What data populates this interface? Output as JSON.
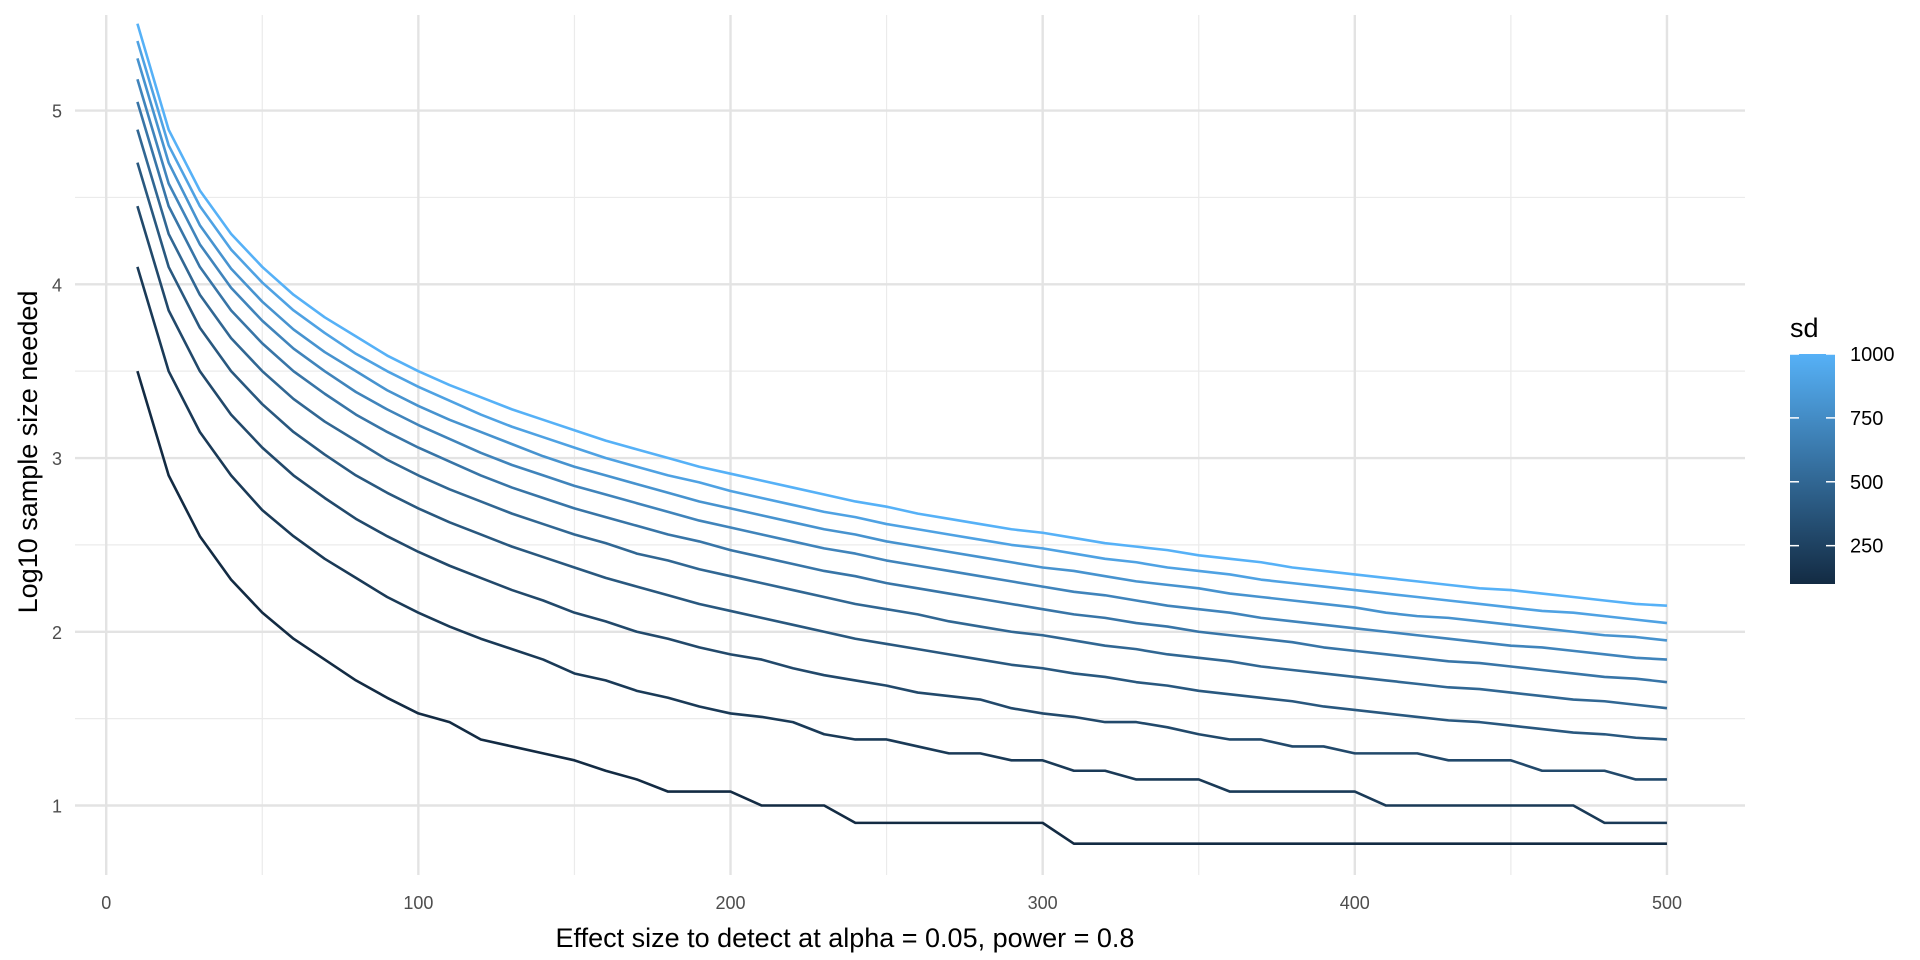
{
  "chart_data": {
    "type": "line",
    "title": "",
    "xlabel": "Effect size to detect at alpha = 0.05, power = 0.8",
    "ylabel": "Log10 sample size needed",
    "xlim": [
      -10,
      525
    ],
    "ylim": [
      0.6,
      5.55
    ],
    "x_ticks": [
      0,
      100,
      200,
      300,
      400,
      500
    ],
    "x_tick_labels": [
      "0",
      "100",
      "200",
      "300",
      "400",
      "500"
    ],
    "x_minor_ticks": [
      50,
      150,
      250,
      350,
      450
    ],
    "y_ticks": [
      1,
      2,
      3,
      4,
      5
    ],
    "y_tick_labels": [
      "1",
      "2",
      "3",
      "4",
      "5"
    ],
    "y_minor_ticks": [
      1.5,
      2.5,
      3.5,
      4.5
    ],
    "grid": true,
    "legend": {
      "title": "sd",
      "position": "right",
      "type": "colorbar",
      "range": [
        100,
        1000
      ],
      "low_color": "#132B43",
      "high_color": "#56B1F7",
      "ticks": [
        250,
        500,
        750,
        1000
      ],
      "tick_labels": [
        "250",
        "500",
        "750",
        "1000"
      ]
    },
    "x": [
      10,
      20,
      30,
      40,
      50,
      60,
      70,
      80,
      90,
      100,
      110,
      120,
      130,
      140,
      150,
      160,
      170,
      180,
      190,
      200,
      210,
      220,
      230,
      240,
      250,
      260,
      270,
      280,
      290,
      300,
      310,
      320,
      330,
      340,
      350,
      360,
      370,
      380,
      390,
      400,
      410,
      420,
      430,
      440,
      450,
      460,
      470,
      480,
      490,
      500
    ],
    "series": [
      {
        "sd": 100,
        "values": [
          3.5,
          2.9,
          2.55,
          2.3,
          2.11,
          1.96,
          1.84,
          1.72,
          1.62,
          1.53,
          1.48,
          1.38,
          1.34,
          1.3,
          1.26,
          1.2,
          1.15,
          1.08,
          1.08,
          1.08,
          1.0,
          1.0,
          1.0,
          0.9,
          0.9,
          0.9,
          0.9,
          0.9,
          0.9,
          0.9,
          0.78,
          0.78,
          0.78,
          0.78,
          0.78,
          0.78,
          0.78,
          0.78,
          0.78,
          0.78,
          0.78,
          0.78,
          0.78,
          0.78,
          0.78,
          0.78,
          0.78,
          0.78,
          0.78,
          0.78
        ]
      },
      {
        "sd": 200,
        "values": [
          4.1,
          3.5,
          3.15,
          2.9,
          2.7,
          2.55,
          2.42,
          2.31,
          2.2,
          2.11,
          2.03,
          1.96,
          1.9,
          1.84,
          1.76,
          1.72,
          1.66,
          1.62,
          1.57,
          1.53,
          1.51,
          1.48,
          1.41,
          1.38,
          1.38,
          1.34,
          1.3,
          1.3,
          1.26,
          1.26,
          1.2,
          1.2,
          1.15,
          1.15,
          1.15,
          1.08,
          1.08,
          1.08,
          1.08,
          1.08,
          1.0,
          1.0,
          1.0,
          1.0,
          1.0,
          1.0,
          1.0,
          0.9,
          0.9,
          0.9
        ]
      },
      {
        "sd": 300,
        "values": [
          4.45,
          3.85,
          3.5,
          3.25,
          3.06,
          2.9,
          2.77,
          2.65,
          2.55,
          2.46,
          2.38,
          2.31,
          2.24,
          2.18,
          2.11,
          2.06,
          2.0,
          1.96,
          1.91,
          1.87,
          1.84,
          1.79,
          1.75,
          1.72,
          1.69,
          1.65,
          1.63,
          1.61,
          1.56,
          1.53,
          1.51,
          1.48,
          1.48,
          1.45,
          1.41,
          1.38,
          1.38,
          1.34,
          1.34,
          1.3,
          1.3,
          1.3,
          1.26,
          1.26,
          1.26,
          1.2,
          1.2,
          1.2,
          1.15,
          1.15
        ]
      },
      {
        "sd": 400,
        "values": [
          4.7,
          4.1,
          3.75,
          3.5,
          3.31,
          3.15,
          3.02,
          2.9,
          2.8,
          2.71,
          2.63,
          2.56,
          2.49,
          2.43,
          2.37,
          2.31,
          2.26,
          2.21,
          2.16,
          2.12,
          2.08,
          2.04,
          2.0,
          1.96,
          1.93,
          1.9,
          1.87,
          1.84,
          1.81,
          1.79,
          1.76,
          1.74,
          1.71,
          1.69,
          1.66,
          1.64,
          1.62,
          1.6,
          1.57,
          1.55,
          1.53,
          1.51,
          1.49,
          1.48,
          1.46,
          1.44,
          1.42,
          1.41,
          1.39,
          1.38
        ]
      },
      {
        "sd": 500,
        "values": [
          4.89,
          4.29,
          3.94,
          3.69,
          3.5,
          3.34,
          3.21,
          3.1,
          2.99,
          2.9,
          2.82,
          2.75,
          2.68,
          2.62,
          2.56,
          2.51,
          2.45,
          2.41,
          2.36,
          2.32,
          2.28,
          2.24,
          2.2,
          2.16,
          2.13,
          2.1,
          2.06,
          2.03,
          2.0,
          1.98,
          1.95,
          1.92,
          1.9,
          1.87,
          1.85,
          1.83,
          1.8,
          1.78,
          1.76,
          1.74,
          1.72,
          1.7,
          1.68,
          1.67,
          1.65,
          1.63,
          1.61,
          1.6,
          1.58,
          1.56
        ]
      },
      {
        "sd": 600,
        "values": [
          5.05,
          4.45,
          4.1,
          3.85,
          3.66,
          3.5,
          3.37,
          3.25,
          3.15,
          3.06,
          2.98,
          2.9,
          2.83,
          2.77,
          2.71,
          2.66,
          2.61,
          2.56,
          2.52,
          2.47,
          2.43,
          2.39,
          2.35,
          2.32,
          2.28,
          2.25,
          2.22,
          2.19,
          2.16,
          2.13,
          2.1,
          2.08,
          2.05,
          2.03,
          2.0,
          1.98,
          1.96,
          1.94,
          1.91,
          1.89,
          1.87,
          1.85,
          1.83,
          1.82,
          1.8,
          1.78,
          1.76,
          1.74,
          1.73,
          1.71
        ]
      },
      {
        "sd": 700,
        "values": [
          5.18,
          4.58,
          4.23,
          3.98,
          3.79,
          3.63,
          3.5,
          3.38,
          3.28,
          3.19,
          3.11,
          3.03,
          2.96,
          2.9,
          2.84,
          2.79,
          2.74,
          2.69,
          2.64,
          2.6,
          2.56,
          2.52,
          2.48,
          2.45,
          2.41,
          2.38,
          2.35,
          2.32,
          2.29,
          2.26,
          2.23,
          2.21,
          2.18,
          2.15,
          2.13,
          2.11,
          2.08,
          2.06,
          2.04,
          2.02,
          2.0,
          1.98,
          1.96,
          1.94,
          1.92,
          1.91,
          1.89,
          1.87,
          1.85,
          1.84
        ]
      },
      {
        "sd": 800,
        "values": [
          5.3,
          4.7,
          4.34,
          4.09,
          3.9,
          3.74,
          3.61,
          3.5,
          3.39,
          3.3,
          3.22,
          3.15,
          3.08,
          3.01,
          2.95,
          2.9,
          2.85,
          2.8,
          2.75,
          2.71,
          2.67,
          2.63,
          2.59,
          2.56,
          2.52,
          2.49,
          2.46,
          2.43,
          2.4,
          2.37,
          2.35,
          2.32,
          2.29,
          2.27,
          2.25,
          2.22,
          2.2,
          2.18,
          2.16,
          2.14,
          2.11,
          2.09,
          2.08,
          2.06,
          2.04,
          2.02,
          2.0,
          1.98,
          1.97,
          1.95
        ]
      },
      {
        "sd": 900,
        "values": [
          5.4,
          4.8,
          4.45,
          4.2,
          4.01,
          3.85,
          3.72,
          3.6,
          3.5,
          3.41,
          3.33,
          3.25,
          3.18,
          3.12,
          3.06,
          3.0,
          2.95,
          2.9,
          2.86,
          2.81,
          2.77,
          2.73,
          2.69,
          2.66,
          2.62,
          2.59,
          2.56,
          2.53,
          2.5,
          2.48,
          2.45,
          2.42,
          2.4,
          2.37,
          2.35,
          2.33,
          2.3,
          2.28,
          2.26,
          2.24,
          2.22,
          2.2,
          2.18,
          2.16,
          2.14,
          2.12,
          2.11,
          2.09,
          2.07,
          2.05
        ]
      },
      {
        "sd": 1000,
        "values": [
          5.5,
          4.89,
          4.54,
          4.29,
          4.1,
          3.94,
          3.81,
          3.7,
          3.59,
          3.5,
          3.42,
          3.35,
          3.28,
          3.22,
          3.16,
          3.1,
          3.05,
          3.0,
          2.95,
          2.91,
          2.87,
          2.83,
          2.79,
          2.75,
          2.72,
          2.68,
          2.65,
          2.62,
          2.59,
          2.57,
          2.54,
          2.51,
          2.49,
          2.47,
          2.44,
          2.42,
          2.4,
          2.37,
          2.35,
          2.33,
          2.31,
          2.29,
          2.27,
          2.25,
          2.24,
          2.22,
          2.2,
          2.18,
          2.16,
          2.15
        ]
      }
    ]
  }
}
